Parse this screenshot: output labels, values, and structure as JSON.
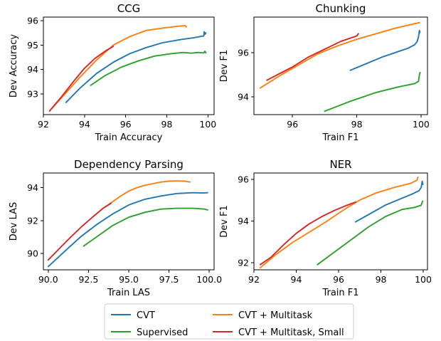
{
  "legend": {
    "items": [
      {
        "label": "CVT",
        "series": "cvt"
      },
      {
        "label": "Supervised",
        "series": "supervised"
      },
      {
        "label": "CVT + Multitask",
        "series": "multitask"
      },
      {
        "label": "CVT + Multitask, Small",
        "series": "small"
      }
    ]
  },
  "colors": {
    "cvt": "#1f77b4",
    "supervised": "#2ca02c",
    "multitask": "#ff7f0e",
    "small": "#d62728"
  },
  "chart_data": [
    {
      "type": "line",
      "title": "CCG",
      "xlabel": "Train Accuracy",
      "ylabel": "Dev Accuracy",
      "xlim": [
        92,
        100.3
      ],
      "ylim": [
        92.15,
        96.15
      ],
      "xticks": [
        92,
        94,
        96,
        98,
        100
      ],
      "yticks": [
        93,
        94,
        95,
        96
      ],
      "series": [
        {
          "key": "cvt",
          "x": [
            93.1,
            93.8,
            94.6,
            95.4,
            96.2,
            97.0,
            97.8,
            98.6,
            99.3,
            99.8,
            99.82,
            99.86,
            99.9
          ],
          "y": [
            92.65,
            93.25,
            93.85,
            94.3,
            94.65,
            94.9,
            95.1,
            95.22,
            95.3,
            95.38,
            95.55,
            95.45,
            95.5
          ]
        },
        {
          "key": "supervised",
          "x": [
            94.3,
            95.0,
            95.8,
            96.6,
            97.4,
            98.2,
            98.8,
            99.2,
            99.5,
            99.8,
            99.85,
            99.9
          ],
          "y": [
            93.35,
            93.75,
            94.1,
            94.35,
            94.55,
            94.65,
            94.7,
            94.67,
            94.7,
            94.68,
            94.75,
            94.68
          ]
        },
        {
          "key": "multitask",
          "x": [
            92.3,
            93.0,
            93.8,
            94.6,
            95.4,
            96.2,
            97.0,
            97.8,
            98.6,
            98.9,
            98.95
          ],
          "y": [
            92.3,
            92.95,
            93.7,
            94.4,
            95.0,
            95.35,
            95.6,
            95.7,
            95.78,
            95.8,
            95.75
          ]
        },
        {
          "key": "small",
          "x": [
            92.3,
            92.9,
            93.5,
            94.0,
            94.5,
            95.0,
            95.3,
            95.4
          ],
          "y": [
            92.3,
            92.9,
            93.55,
            94.05,
            94.45,
            94.75,
            94.9,
            94.95
          ]
        }
      ]
    },
    {
      "type": "line",
      "title": "Chunking",
      "xlabel": "Train F1",
      "ylabel": "Dev F1",
      "xlim": [
        94.8,
        100.2
      ],
      "ylim": [
        93.2,
        97.6
      ],
      "xticks": [
        96,
        98,
        100
      ],
      "yticks": [
        94,
        96
      ],
      "series": [
        {
          "key": "cvt",
          "x": [
            97.8,
            98.3,
            98.8,
            99.3,
            99.6,
            99.8,
            99.88,
            99.92,
            99.95,
            99.96
          ],
          "y": [
            95.2,
            95.5,
            95.8,
            96.05,
            96.2,
            96.35,
            96.5,
            96.7,
            97.0,
            96.9
          ]
        },
        {
          "key": "supervised",
          "x": [
            97.0,
            97.8,
            98.6,
            99.3,
            99.8,
            99.92,
            99.95,
            99.97
          ],
          "y": [
            93.35,
            93.8,
            94.2,
            94.45,
            94.6,
            94.7,
            95.0,
            95.1
          ]
        },
        {
          "key": "multitask",
          "x": [
            95.0,
            95.6,
            96.2,
            96.8,
            97.4,
            98.0,
            98.6,
            99.2,
            99.8,
            99.95
          ],
          "y": [
            94.4,
            94.95,
            95.45,
            95.95,
            96.3,
            96.6,
            96.85,
            97.1,
            97.3,
            97.35
          ]
        },
        {
          "key": "small",
          "x": [
            95.2,
            95.6,
            96.0,
            96.5,
            97.0,
            97.5,
            98.0,
            98.05
          ],
          "y": [
            94.75,
            95.05,
            95.35,
            95.8,
            96.15,
            96.5,
            96.75,
            96.85
          ]
        }
      ]
    },
    {
      "type": "line",
      "title": "Dependency Parsing",
      "xlabel": "Train LAS",
      "ylabel": "Dev LAS",
      "xlim": [
        89.7,
        100.3
      ],
      "ylim": [
        89.0,
        94.9
      ],
      "xticks": [
        90.0,
        92.5,
        95.0,
        97.5,
        100.0
      ],
      "yticks": [
        90,
        92,
        94
      ],
      "series": [
        {
          "key": "cvt",
          "x": [
            90.0,
            91.0,
            92.0,
            93.0,
            94.0,
            95.0,
            96.0,
            97.0,
            98.0,
            99.0,
            99.6,
            99.9
          ],
          "y": [
            89.2,
            90.1,
            91.0,
            91.75,
            92.4,
            92.95,
            93.3,
            93.5,
            93.65,
            93.7,
            93.68,
            93.7
          ]
        },
        {
          "key": "supervised",
          "x": [
            92.2,
            93.0,
            94.0,
            95.0,
            96.0,
            97.0,
            98.0,
            99.0,
            99.7,
            99.9
          ],
          "y": [
            90.45,
            91.0,
            91.7,
            92.2,
            92.5,
            92.7,
            92.75,
            92.75,
            92.7,
            92.65
          ]
        },
        {
          "key": "multitask",
          "x": [
            93.5,
            94.0,
            94.5,
            95.0,
            95.5,
            96.0,
            96.5,
            97.0,
            97.5,
            98.0,
            98.5,
            98.8
          ],
          "y": [
            92.8,
            93.15,
            93.5,
            93.8,
            94.0,
            94.15,
            94.25,
            94.35,
            94.4,
            94.42,
            94.4,
            94.35
          ]
        },
        {
          "key": "small",
          "x": [
            90.0,
            90.7,
            91.4,
            92.1,
            92.8,
            93.4,
            93.9
          ],
          "y": [
            89.6,
            90.3,
            91.0,
            91.65,
            92.25,
            92.75,
            93.05
          ]
        }
      ]
    },
    {
      "type": "line",
      "title": "NER",
      "xlabel": "Train F1",
      "ylabel": "Dev F1",
      "xlim": [
        92.0,
        100.2
      ],
      "ylim": [
        91.65,
        96.3
      ],
      "xticks": [
        92,
        94,
        96,
        98,
        100
      ],
      "yticks": [
        92,
        94,
        96
      ],
      "series": [
        {
          "key": "cvt",
          "x": [
            96.8,
            97.5,
            98.2,
            98.9,
            99.5,
            99.8,
            99.9,
            99.95,
            99.98
          ],
          "y": [
            93.95,
            94.35,
            94.75,
            95.05,
            95.3,
            95.45,
            95.6,
            95.9,
            95.75
          ]
        },
        {
          "key": "supervised",
          "x": [
            95.0,
            95.8,
            96.6,
            97.4,
            98.2,
            99.0,
            99.6,
            99.9,
            99.95,
            99.98
          ],
          "y": [
            91.9,
            92.5,
            93.1,
            93.7,
            94.2,
            94.55,
            94.65,
            94.75,
            94.9,
            94.95
          ]
        },
        {
          "key": "multitask",
          "x": [
            92.3,
            93.0,
            93.8,
            94.6,
            95.4,
            96.2,
            97.0,
            97.8,
            98.6,
            99.4,
            99.7,
            99.75
          ],
          "y": [
            91.75,
            92.35,
            92.95,
            93.45,
            93.95,
            94.5,
            95.0,
            95.35,
            95.6,
            95.8,
            95.95,
            96.1
          ]
        },
        {
          "key": "small",
          "x": [
            92.3,
            92.8,
            93.4,
            94.0,
            94.6,
            95.2,
            95.8,
            96.4,
            96.8
          ],
          "y": [
            91.9,
            92.25,
            92.85,
            93.4,
            93.85,
            94.2,
            94.5,
            94.75,
            94.9
          ]
        }
      ]
    }
  ]
}
